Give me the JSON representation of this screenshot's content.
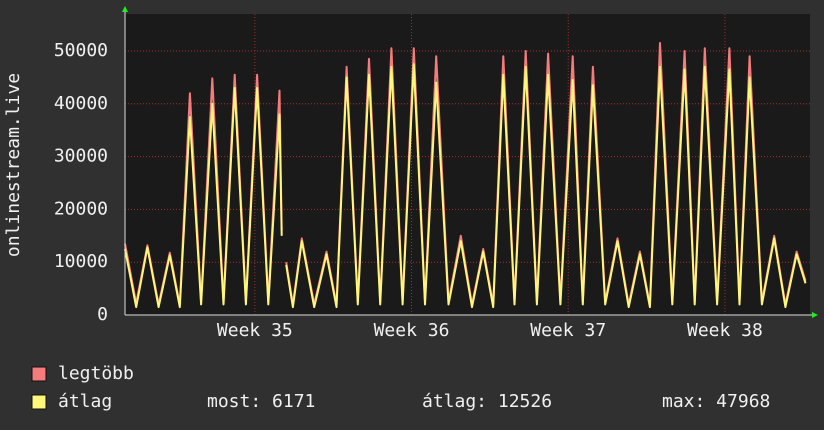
{
  "chart_data": {
    "type": "line",
    "ylabel": "onlinestream.live",
    "x": [
      0,
      0.5,
      1.0,
      1.5,
      2.0,
      2.45,
      2.9,
      3.4,
      3.9,
      4.4,
      4.9,
      5.4,
      5.9,
      6.4,
      6.9,
      7.0,
      7.1,
      7.2,
      7.5,
      7.9,
      8.45,
      9.0,
      9.45,
      9.9,
      10.4,
      10.9,
      11.4,
      11.9,
      12.4,
      12.9,
      13.4,
      13.9,
      14.45,
      15.0,
      15.5,
      16.0,
      16.45,
      16.9,
      17.4,
      17.9,
      18.4,
      18.9,
      19.45,
      20.0,
      20.45,
      20.9,
      21.45,
      22.0,
      22.5,
      23.0,
      23.45,
      23.9,
      24.45,
      25.0,
      25.45,
      25.9,
      26.45,
      27.0,
      27.45,
      27.9,
      28.45,
      29.0,
      29.5,
      30.0,
      30.4
    ],
    "series": [
      {
        "name": "legtöbb",
        "color": "#f47c7c",
        "values": [
          13500,
          2200,
          13200,
          2000,
          11800,
          2000,
          42000,
          2500,
          44800,
          2500,
          45500,
          2500,
          45500,
          2500,
          42500,
          16000,
          null,
          10000,
          2000,
          14500,
          2000,
          12000,
          2000,
          47000,
          2500,
          48500,
          2500,
          50500,
          2500,
          50500,
          2500,
          49000,
          2500,
          15000,
          2000,
          12500,
          2000,
          49000,
          2500,
          50000,
          2500,
          49500,
          2500,
          49000,
          2500,
          47000,
          2500,
          14500,
          2000,
          12000,
          2000,
          51500,
          2500,
          50000,
          2500,
          50500,
          2500,
          50500,
          2500,
          49000,
          2500,
          15000,
          2000,
          12000,
          6500
        ]
      },
      {
        "name": "átlag",
        "color": "#fff77a",
        "values": [
          12500,
          1500,
          12800,
          1500,
          11300,
          1500,
          37500,
          2000,
          40000,
          2000,
          43000,
          2000,
          43000,
          2000,
          38000,
          15000,
          null,
          9500,
          1500,
          14000,
          1500,
          11500,
          1500,
          45000,
          2000,
          45500,
          2000,
          47000,
          2000,
          47500,
          2000,
          44000,
          2000,
          14000,
          1500,
          12000,
          1500,
          45500,
          2000,
          47000,
          2000,
          45500,
          2000,
          44500,
          2000,
          43500,
          2000,
          14000,
          1500,
          11500,
          1500,
          47000,
          2000,
          46500,
          2000,
          47000,
          2000,
          46500,
          2000,
          45000,
          2000,
          14500,
          1500,
          11500,
          6000
        ]
      }
    ],
    "xlim": [
      0,
      30.6
    ],
    "xticks": [
      {
        "value": 5.8,
        "label": "Week 35"
      },
      {
        "value": 12.8,
        "label": "Week 36"
      },
      {
        "value": 19.8,
        "label": "Week 37"
      },
      {
        "value": 26.8,
        "label": "Week 38"
      }
    ],
    "ylim": [
      0,
      57000
    ],
    "yticks": [
      0,
      10000,
      20000,
      30000,
      40000,
      50000
    ],
    "grid": true,
    "stats": [
      "most: 6171",
      "átlag: 12526",
      "max: 47968"
    ]
  }
}
